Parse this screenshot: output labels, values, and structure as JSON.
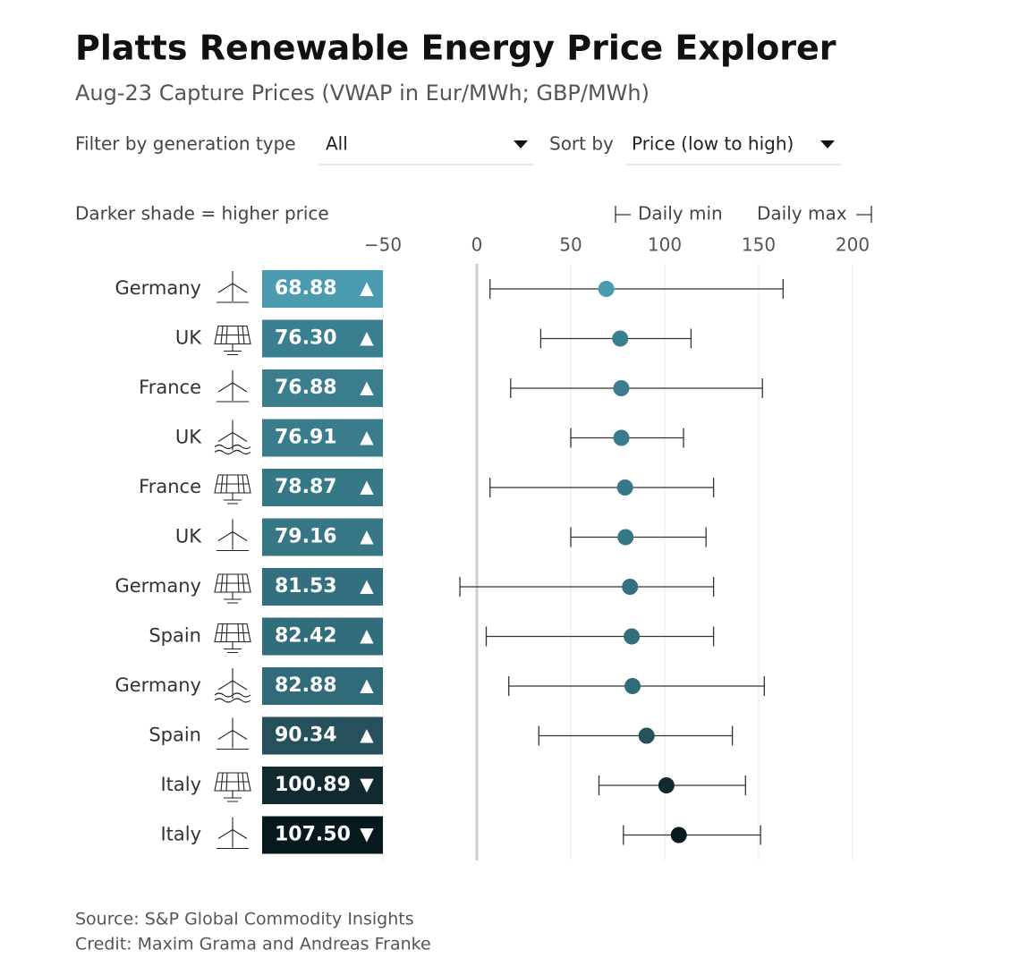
{
  "chart_data": {
    "type": "dot",
    "title": "Platts Renewable Energy Price Explorer",
    "subtitle": "Aug-23 Capture Prices (VWAP in Eur/MWh; GBP/MWh)",
    "filter_label": "Filter by generation type",
    "filter_value": "All",
    "sort_label": "Sort by",
    "sort_value": "Price (low to high)",
    "shade_note": "Darker shade = higher price",
    "min_label": "Daily min",
    "max_label": "Daily max",
    "categories": [
      "Germany",
      "UK",
      "France",
      "UK",
      "France",
      "UK",
      "Germany",
      "Spain",
      "Germany",
      "Spain",
      "Italy",
      "Italy"
    ],
    "generation_types": [
      "wind",
      "solar",
      "wind",
      "offshore",
      "solar",
      "wind",
      "solar",
      "solar",
      "offshore",
      "wind",
      "solar",
      "wind"
    ],
    "values": [
      68.88,
      76.3,
      76.88,
      76.91,
      78.87,
      79.16,
      81.53,
      82.42,
      82.88,
      90.34,
      100.89,
      107.5
    ],
    "value_labels": [
      "68.88",
      "76.30",
      "76.88",
      "76.91",
      "78.87",
      "79.16",
      "81.53",
      "82.42",
      "82.88",
      "90.34",
      "100.89",
      "107.50"
    ],
    "trend_symbols": [
      "▲",
      "▲",
      "▲",
      "▲",
      "▲",
      "▲",
      "▲",
      "▲",
      "▲",
      "▲",
      "▼",
      "▼"
    ],
    "min": [
      7,
      34,
      18,
      50,
      7,
      50,
      -9,
      5,
      17,
      33,
      65,
      78
    ],
    "max": [
      163,
      114,
      152,
      110,
      126,
      122,
      126,
      126,
      153,
      136,
      143,
      151
    ],
    "colors": [
      "#4b9bb0",
      "#3a7f8f",
      "#3a7d8d",
      "#3a7c8c",
      "#377887",
      "#367685",
      "#336f7e",
      "#326d7c",
      "#316b7a",
      "#25505c",
      "#102a30",
      "#06191d"
    ],
    "xlim": [
      -50,
      210
    ],
    "xticks": [
      {
        "value": -50,
        "label": "−50"
      },
      0,
      50,
      100,
      150,
      200
    ],
    "grid": true,
    "source": "Source: S&P Global Commodity Insights",
    "credit": "Credit: Maxim Grama and Andreas Franke"
  }
}
